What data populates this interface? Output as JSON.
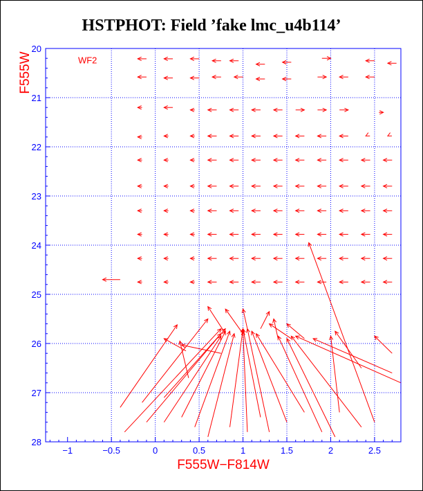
{
  "chart_data": {
    "type": "scatter",
    "title": "HSTPHOT: Field ’fake lmc_u4b114’",
    "xlabel": "F555W−F814W",
    "ylabel": "F555W",
    "annotation": "WF2",
    "xlim": [
      -1.25,
      2.8
    ],
    "ylim": [
      28,
      20
    ],
    "x_ticks": [
      -1,
      -0.5,
      0,
      0.5,
      1,
      1.5,
      2,
      2.5
    ],
    "x_tick_labels": [
      "−1",
      "−0.5",
      "0",
      "0.5",
      "1",
      "1.5",
      "2",
      "2.5"
    ],
    "y_ticks": [
      20,
      21,
      22,
      23,
      24,
      25,
      26,
      27,
      28
    ],
    "y_tick_labels": [
      "20",
      "21",
      "22",
      "23",
      "24",
      "25",
      "26",
      "27",
      "28"
    ],
    "grid_x": [
      -0.5,
      0,
      0.5,
      1,
      1.5,
      2,
      2.5
    ],
    "grid_y": [
      21,
      22,
      23,
      24,
      25,
      26,
      27
    ],
    "grid": true,
    "colors": {
      "data": "#ff0000",
      "grid": "#0000ff",
      "axis": "#0000ff",
      "title": "#000000"
    },
    "vectors": [
      {
        "x0": -0.1,
        "y0": 20.21,
        "x1": -0.2,
        "y1": 20.21
      },
      {
        "x0": 0.2,
        "y0": 20.21,
        "x1": 0.1,
        "y1": 20.21
      },
      {
        "x0": 0.5,
        "y0": 20.21,
        "x1": 0.4,
        "y1": 20.21
      },
      {
        "x0": 0.75,
        "y0": 20.25,
        "x1": 0.65,
        "y1": 20.25
      },
      {
        "x0": 0.95,
        "y0": 20.25,
        "x1": 0.85,
        "y1": 20.25
      },
      {
        "x0": 1.25,
        "y0": 20.32,
        "x1": 1.15,
        "y1": 20.32
      },
      {
        "x0": 1.55,
        "y0": 20.28,
        "x1": 1.45,
        "y1": 20.28
      },
      {
        "x0": 1.9,
        "y0": 20.2,
        "x1": 2,
        "y1": 20.2
      },
      {
        "x0": 2.5,
        "y0": 20.25,
        "x1": 2.4,
        "y1": 20.25
      },
      {
        "x0": 2.75,
        "y0": 20.3,
        "x1": 2.65,
        "y1": 20.3
      },
      {
        "x0": -0.1,
        "y0": 20.58,
        "x1": -0.2,
        "y1": 20.58
      },
      {
        "x0": 0.2,
        "y0": 20.6,
        "x1": 0.1,
        "y1": 20.6
      },
      {
        "x0": 0.5,
        "y0": 20.6,
        "x1": 0.4,
        "y1": 20.6
      },
      {
        "x0": 0.75,
        "y0": 20.58,
        "x1": 0.65,
        "y1": 20.58
      },
      {
        "x0": 1,
        "y0": 20.58,
        "x1": 0.9,
        "y1": 20.58
      },
      {
        "x0": 1.25,
        "y0": 20.62,
        "x1": 1.15,
        "y1": 20.62
      },
      {
        "x0": 1.55,
        "y0": 20.62,
        "x1": 1.45,
        "y1": 20.62
      },
      {
        "x0": 1.85,
        "y0": 20.58,
        "x1": 1.95,
        "y1": 20.58
      },
      {
        "x0": 2.2,
        "y0": 20.58,
        "x1": 2.1,
        "y1": 20.58
      },
      {
        "x0": 2.5,
        "y0": 20.58,
        "x1": 2.4,
        "y1": 20.58
      },
      {
        "x0": -0.15,
        "y0": 21.2,
        "x1": -0.2,
        "y1": 21.2
      },
      {
        "x0": 0.2,
        "y0": 21.2,
        "x1": 0.1,
        "y1": 21.2
      },
      {
        "x0": 0.45,
        "y0": 21.25,
        "x1": 0.4,
        "y1": 21.25
      },
      {
        "x0": 0.7,
        "y0": 21.25,
        "x1": 0.6,
        "y1": 21.25
      },
      {
        "x0": 0.95,
        "y0": 21.25,
        "x1": 0.85,
        "y1": 21.25
      },
      {
        "x0": 1.2,
        "y0": 21.25,
        "x1": 1.1,
        "y1": 21.25
      },
      {
        "x0": 1.45,
        "y0": 21.25,
        "x1": 1.35,
        "y1": 21.25
      },
      {
        "x0": 1.6,
        "y0": 21.25,
        "x1": 1.7,
        "y1": 21.25
      },
      {
        "x0": 1.85,
        "y0": 21.25,
        "x1": 1.95,
        "y1": 21.25
      },
      {
        "x0": 2.1,
        "y0": 21.25,
        "x1": 2.2,
        "y1": 21.25
      },
      {
        "x0": 2.55,
        "y0": 21.3,
        "x1": 2.6,
        "y1": 21.3
      },
      {
        "x0": -0.15,
        "y0": 21.8,
        "x1": -0.2,
        "y1": 21.8
      },
      {
        "x0": 0.15,
        "y0": 21.78,
        "x1": 0.1,
        "y1": 21.78
      },
      {
        "x0": 0.45,
        "y0": 21.78,
        "x1": 0.4,
        "y1": 21.78
      },
      {
        "x0": 0.7,
        "y0": 21.78,
        "x1": 0.6,
        "y1": 21.78
      },
      {
        "x0": 0.95,
        "y0": 21.78,
        "x1": 0.85,
        "y1": 21.78
      },
      {
        "x0": 1.2,
        "y0": 21.78,
        "x1": 1.1,
        "y1": 21.78
      },
      {
        "x0": 1.45,
        "y0": 21.78,
        "x1": 1.35,
        "y1": 21.78
      },
      {
        "x0": 1.7,
        "y0": 21.78,
        "x1": 1.6,
        "y1": 21.78
      },
      {
        "x0": 1.95,
        "y0": 21.78,
        "x1": 1.85,
        "y1": 21.78
      },
      {
        "x0": 2.2,
        "y0": 21.78,
        "x1": 2.1,
        "y1": 21.78
      },
      {
        "x0": 2.4,
        "y0": 21.78,
        "x1": 2.4,
        "y1": 21.78
      },
      {
        "x0": 2.65,
        "y0": 21.78,
        "x1": 2.65,
        "y1": 21.78
      },
      {
        "x0": -0.15,
        "y0": 22.27,
        "x1": -0.2,
        "y1": 22.27
      },
      {
        "x0": 0.15,
        "y0": 22.27,
        "x1": 0.1,
        "y1": 22.27
      },
      {
        "x0": 0.45,
        "y0": 22.27,
        "x1": 0.4,
        "y1": 22.27
      },
      {
        "x0": 0.7,
        "y0": 22.27,
        "x1": 0.6,
        "y1": 22.27
      },
      {
        "x0": 0.95,
        "y0": 22.27,
        "x1": 0.85,
        "y1": 22.27
      },
      {
        "x0": 1.2,
        "y0": 22.27,
        "x1": 1.1,
        "y1": 22.27
      },
      {
        "x0": 1.45,
        "y0": 22.27,
        "x1": 1.35,
        "y1": 22.27
      },
      {
        "x0": 1.7,
        "y0": 22.27,
        "x1": 1.6,
        "y1": 22.27
      },
      {
        "x0": 1.95,
        "y0": 22.27,
        "x1": 1.85,
        "y1": 22.27
      },
      {
        "x0": 2.2,
        "y0": 22.27,
        "x1": 2.1,
        "y1": 22.27
      },
      {
        "x0": 2.45,
        "y0": 22.27,
        "x1": 2.35,
        "y1": 22.27
      },
      {
        "x0": 2.7,
        "y0": 22.27,
        "x1": 2.6,
        "y1": 22.27
      },
      {
        "x0": -0.15,
        "y0": 22.8,
        "x1": -0.2,
        "y1": 22.8
      },
      {
        "x0": 0.15,
        "y0": 22.8,
        "x1": 0.1,
        "y1": 22.8
      },
      {
        "x0": 0.45,
        "y0": 22.8,
        "x1": 0.4,
        "y1": 22.8
      },
      {
        "x0": 0.7,
        "y0": 22.8,
        "x1": 0.6,
        "y1": 22.8
      },
      {
        "x0": 0.95,
        "y0": 22.8,
        "x1": 0.85,
        "y1": 22.8
      },
      {
        "x0": 1.2,
        "y0": 22.8,
        "x1": 1.1,
        "y1": 22.8
      },
      {
        "x0": 1.45,
        "y0": 22.8,
        "x1": 1.35,
        "y1": 22.8
      },
      {
        "x0": 1.7,
        "y0": 22.8,
        "x1": 1.6,
        "y1": 22.8
      },
      {
        "x0": 1.95,
        "y0": 22.8,
        "x1": 1.85,
        "y1": 22.8
      },
      {
        "x0": 2.2,
        "y0": 22.8,
        "x1": 2.1,
        "y1": 22.8
      },
      {
        "x0": 2.45,
        "y0": 22.8,
        "x1": 2.35,
        "y1": 22.8
      },
      {
        "x0": 2.7,
        "y0": 22.8,
        "x1": 2.6,
        "y1": 22.8
      },
      {
        "x0": -0.15,
        "y0": 23.3,
        "x1": -0.2,
        "y1": 23.3
      },
      {
        "x0": 0.15,
        "y0": 23.3,
        "x1": 0.1,
        "y1": 23.3
      },
      {
        "x0": 0.45,
        "y0": 23.3,
        "x1": 0.4,
        "y1": 23.3
      },
      {
        "x0": 0.7,
        "y0": 23.3,
        "x1": 0.6,
        "y1": 23.3
      },
      {
        "x0": 0.95,
        "y0": 23.3,
        "x1": 0.85,
        "y1": 23.3
      },
      {
        "x0": 1.2,
        "y0": 23.3,
        "x1": 1.1,
        "y1": 23.3
      },
      {
        "x0": 1.45,
        "y0": 23.3,
        "x1": 1.35,
        "y1": 23.3
      },
      {
        "x0": 1.7,
        "y0": 23.3,
        "x1": 1.6,
        "y1": 23.3
      },
      {
        "x0": 1.95,
        "y0": 23.3,
        "x1": 1.85,
        "y1": 23.3
      },
      {
        "x0": 2.2,
        "y0": 23.3,
        "x1": 2.1,
        "y1": 23.3
      },
      {
        "x0": 2.45,
        "y0": 23.3,
        "x1": 2.35,
        "y1": 23.3
      },
      {
        "x0": 2.7,
        "y0": 23.3,
        "x1": 2.6,
        "y1": 23.3
      },
      {
        "x0": -0.15,
        "y0": 23.78,
        "x1": -0.2,
        "y1": 23.78
      },
      {
        "x0": 0.15,
        "y0": 23.78,
        "x1": 0.1,
        "y1": 23.78
      },
      {
        "x0": 0.45,
        "y0": 23.78,
        "x1": 0.4,
        "y1": 23.78
      },
      {
        "x0": 0.7,
        "y0": 23.78,
        "x1": 0.6,
        "y1": 23.78
      },
      {
        "x0": 0.95,
        "y0": 23.78,
        "x1": 0.85,
        "y1": 23.78
      },
      {
        "x0": 1.2,
        "y0": 23.78,
        "x1": 1.1,
        "y1": 23.78
      },
      {
        "x0": 1.45,
        "y0": 23.78,
        "x1": 1.35,
        "y1": 23.78
      },
      {
        "x0": 1.7,
        "y0": 23.78,
        "x1": 1.6,
        "y1": 23.78
      },
      {
        "x0": 1.95,
        "y0": 23.78,
        "x1": 1.85,
        "y1": 23.78
      },
      {
        "x0": 2.2,
        "y0": 23.78,
        "x1": 2.1,
        "y1": 23.78
      },
      {
        "x0": 2.45,
        "y0": 23.78,
        "x1": 2.35,
        "y1": 23.78
      },
      {
        "x0": 2.7,
        "y0": 23.78,
        "x1": 2.6,
        "y1": 23.78
      },
      {
        "x0": -0.15,
        "y0": 24.27,
        "x1": -0.2,
        "y1": 24.27
      },
      {
        "x0": 0.15,
        "y0": 24.27,
        "x1": 0.1,
        "y1": 24.27
      },
      {
        "x0": 0.45,
        "y0": 24.27,
        "x1": 0.4,
        "y1": 24.27
      },
      {
        "x0": 0.7,
        "y0": 24.27,
        "x1": 0.6,
        "y1": 24.27
      },
      {
        "x0": 0.95,
        "y0": 24.27,
        "x1": 0.85,
        "y1": 24.27
      },
      {
        "x0": 1.2,
        "y0": 24.27,
        "x1": 1.1,
        "y1": 24.27
      },
      {
        "x0": 1.45,
        "y0": 24.27,
        "x1": 1.35,
        "y1": 24.27
      },
      {
        "x0": 1.7,
        "y0": 24.27,
        "x1": 1.6,
        "y1": 24.27
      },
      {
        "x0": 1.95,
        "y0": 24.27,
        "x1": 1.85,
        "y1": 24.27
      },
      {
        "x0": 2.2,
        "y0": 24.27,
        "x1": 2.1,
        "y1": 24.27
      },
      {
        "x0": 2.45,
        "y0": 24.27,
        "x1": 2.35,
        "y1": 24.27
      },
      {
        "x0": 2.7,
        "y0": 24.27,
        "x1": 2.6,
        "y1": 24.27
      },
      {
        "x0": -0.15,
        "y0": 24.75,
        "x1": -0.2,
        "y1": 24.75
      },
      {
        "x0": 0.15,
        "y0": 24.75,
        "x1": 0.1,
        "y1": 24.75
      },
      {
        "x0": 0.45,
        "y0": 24.75,
        "x1": 0.4,
        "y1": 24.75
      },
      {
        "x0": 0.7,
        "y0": 24.75,
        "x1": 0.6,
        "y1": 24.75
      },
      {
        "x0": 0.95,
        "y0": 24.75,
        "x1": 0.85,
        "y1": 24.75
      },
      {
        "x0": 1.2,
        "y0": 24.75,
        "x1": 1.1,
        "y1": 24.75
      },
      {
        "x0": 1.45,
        "y0": 24.75,
        "x1": 1.35,
        "y1": 24.75
      },
      {
        "x0": 1.7,
        "y0": 24.75,
        "x1": 1.6,
        "y1": 24.75
      },
      {
        "x0": 1.95,
        "y0": 24.75,
        "x1": 1.85,
        "y1": 24.75
      },
      {
        "x0": 2.2,
        "y0": 24.75,
        "x1": 2.1,
        "y1": 24.75
      },
      {
        "x0": 2.45,
        "y0": 24.75,
        "x1": 2.35,
        "y1": 24.75
      },
      {
        "x0": 2.7,
        "y0": 24.75,
        "x1": 2.6,
        "y1": 24.75
      },
      {
        "x0": -0.4,
        "y0": 24.7,
        "x1": -0.6,
        "y1": 24.7
      },
      {
        "x0": -0.4,
        "y0": 27.3,
        "x1": 0.25,
        "y1": 25.62
      },
      {
        "x0": -0.15,
        "y0": 27.2,
        "x1": 0.6,
        "y1": 25.5
      },
      {
        "x0": 0.1,
        "y0": 27.1,
        "x1": 0.8,
        "y1": 25.7
      },
      {
        "x0": -0.1,
        "y0": 27.6,
        "x1": 0.75,
        "y1": 25.8
      },
      {
        "x0": 0.38,
        "y0": 26.7,
        "x1": 0.28,
        "y1": 25.95
      },
      {
        "x0": 0.35,
        "y0": 26.15,
        "x1": 0.1,
        "y1": 25.9
      },
      {
        "x0": 0.75,
        "y0": 26.2,
        "x1": 0.3,
        "y1": 26.03
      },
      {
        "x0": -0.35,
        "y0": 27.8,
        "x1": 0.75,
        "y1": 25.7
      },
      {
        "x0": 0.1,
        "y0": 27.6,
        "x1": 0.75,
        "y1": 25.85
      },
      {
        "x0": 0.3,
        "y0": 27.5,
        "x1": 0.8,
        "y1": 25.75
      },
      {
        "x0": 0.45,
        "y0": 27.7,
        "x1": 0.85,
        "y1": 25.75
      },
      {
        "x0": 0.6,
        "y0": 27.9,
        "x1": 0.9,
        "y1": 25.8
      },
      {
        "x0": 0.85,
        "y0": 27.7,
        "x1": 1.0,
        "y1": 25.7
      },
      {
        "x0": 1.05,
        "y0": 27.8,
        "x1": 1.0,
        "y1": 25.75
      },
      {
        "x0": 1.2,
        "y0": 27.5,
        "x1": 1.0,
        "y1": 25.7
      },
      {
        "x0": 1.3,
        "y0": 27.8,
        "x1": 1.05,
        "y1": 25.7
      },
      {
        "x0": 1.5,
        "y0": 27.6,
        "x1": 1.1,
        "y1": 25.75
      },
      {
        "x0": 1.7,
        "y0": 27.4,
        "x1": 1.15,
        "y1": 25.8
      },
      {
        "x0": 1.9,
        "y0": 27.8,
        "x1": 1.4,
        "y1": 25.85
      },
      {
        "x0": 2.05,
        "y0": 27.9,
        "x1": 1.5,
        "y1": 25.9
      },
      {
        "x0": 2.35,
        "y0": 27.7,
        "x1": 1.55,
        "y1": 25.85
      },
      {
        "x0": 2.8,
        "y0": 26.8,
        "x1": 1.6,
        "y1": 25.85
      },
      {
        "x0": 2.7,
        "y0": 26.6,
        "x1": 1.8,
        "y1": 25.9
      },
      {
        "x0": 2.5,
        "y0": 27.6,
        "x1": 1.75,
        "y1": 23.95
      },
      {
        "x0": 2.1,
        "y0": 27.4,
        "x1": 2.0,
        "y1": 25.85
      },
      {
        "x0": 2.35,
        "y0": 26.5,
        "x1": 2.05,
        "y1": 25.75
      },
      {
        "x0": 2.7,
        "y0": 26.2,
        "x1": 2.5,
        "y1": 25.85
      },
      {
        "x0": 0.8,
        "y0": 25.8,
        "x1": 0.6,
        "y1": 25.25
      },
      {
        "x0": 1.0,
        "y0": 25.8,
        "x1": 0.8,
        "y1": 25.3
      },
      {
        "x0": 1.05,
        "y0": 25.7,
        "x1": 1.0,
        "y1": 25.3
      },
      {
        "x0": 1.2,
        "y0": 25.7,
        "x1": 1.3,
        "y1": 25.35
      },
      {
        "x0": 1.4,
        "y0": 25.9,
        "x1": 1.35,
        "y1": 25.5
      },
      {
        "x0": 1.55,
        "y0": 25.9,
        "x1": 1.3,
        "y1": 25.6
      },
      {
        "x0": 1.7,
        "y0": 25.9,
        "x1": 1.5,
        "y1": 25.6
      }
    ]
  }
}
